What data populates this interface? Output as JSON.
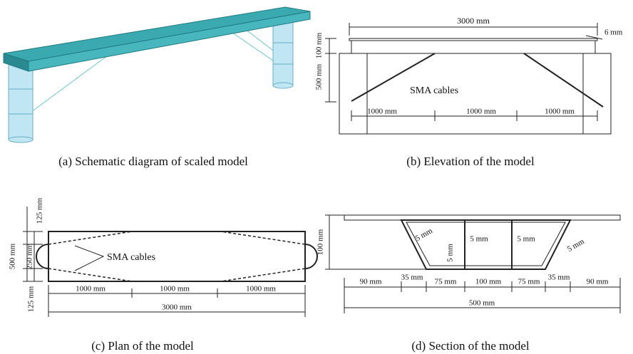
{
  "a": {
    "caption": "(a) Schematic diagram of scaled model"
  },
  "b": {
    "caption": "(b) Elevation of the model",
    "span": "3000 mm",
    "thickness": "6 mm",
    "deck_height": "100 mm",
    "pier_height": "500 mm",
    "cables": "SMA cables",
    "segments": [
      "1000 mm",
      "1000 mm",
      "1000 mm"
    ]
  },
  "c": {
    "caption": "(c) Plan of the model",
    "cables": "SMA cables",
    "widths": [
      "125 mm",
      "250 mm",
      "125 mm"
    ],
    "total_width": "500 mm",
    "segments": [
      "1000 mm",
      "1000 mm",
      "1000 mm"
    ],
    "span": "3000 mm"
  },
  "d": {
    "caption": "(d) Section of the model",
    "height": "100 mm",
    "thicknesses": [
      "5 mm",
      "5 mm",
      "5 mm",
      "5 mm",
      "5 mm"
    ],
    "widths": [
      "90 mm",
      "35 mm",
      "75 mm",
      "100 mm",
      "75 mm",
      "35 mm",
      "90 mm"
    ],
    "total": "500 mm"
  }
}
